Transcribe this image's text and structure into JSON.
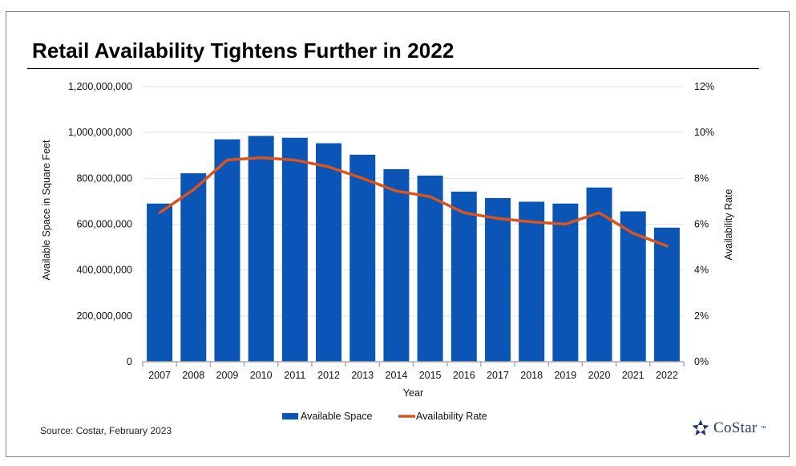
{
  "title": "Retail Availability Tightens Further in 2022",
  "source": "Source: Costar, February 2023",
  "logo": {
    "name": "CoStar",
    "tm": "™",
    "icon": "costar-star-icon"
  },
  "colors": {
    "bar": "#0a55b5",
    "line": "#d9541e",
    "grid": "#e3e3e3",
    "axis": "#aaaaaa",
    "logo": "#1f3a68"
  },
  "chart_data": {
    "type": "bar",
    "title": "Retail Availability Tightens Further in 2022",
    "xlabel": "Year",
    "ylabel": "Available Space in Square Feet",
    "y2label": "Availability Rate",
    "categories": [
      "2007",
      "2008",
      "2009",
      "2010",
      "2011",
      "2012",
      "2013",
      "2014",
      "2015",
      "2016",
      "2017",
      "2018",
      "2019",
      "2020",
      "2021",
      "2022"
    ],
    "ylim": [
      0,
      1200000000
    ],
    "y2lim": [
      0,
      12
    ],
    "yticks": [
      "0",
      "200,000,000",
      "400,000,000",
      "600,000,000",
      "800,000,000",
      "1,000,000,000",
      "1,200,000,000"
    ],
    "y2ticks": [
      "0%",
      "2%",
      "4%",
      "6%",
      "8%",
      "10%",
      "12%"
    ],
    "series": [
      {
        "name": "Available Space",
        "type": "bar",
        "axis": "left",
        "values": [
          690000000,
          822000000,
          970000000,
          985000000,
          977000000,
          953000000,
          903000000,
          840000000,
          812000000,
          742000000,
          714000000,
          698000000,
          690000000,
          760000000,
          656000000,
          585000000
        ]
      },
      {
        "name": "Availability Rate",
        "type": "line",
        "axis": "right",
        "values": [
          6.5,
          7.5,
          8.8,
          8.9,
          8.8,
          8.5,
          8.0,
          7.45,
          7.2,
          6.5,
          6.25,
          6.1,
          6.0,
          6.5,
          5.6,
          5.05
        ]
      }
    ],
    "legend": [
      "Available Space",
      "Availability Rate"
    ],
    "legend_position": "bottom",
    "grid": true
  }
}
